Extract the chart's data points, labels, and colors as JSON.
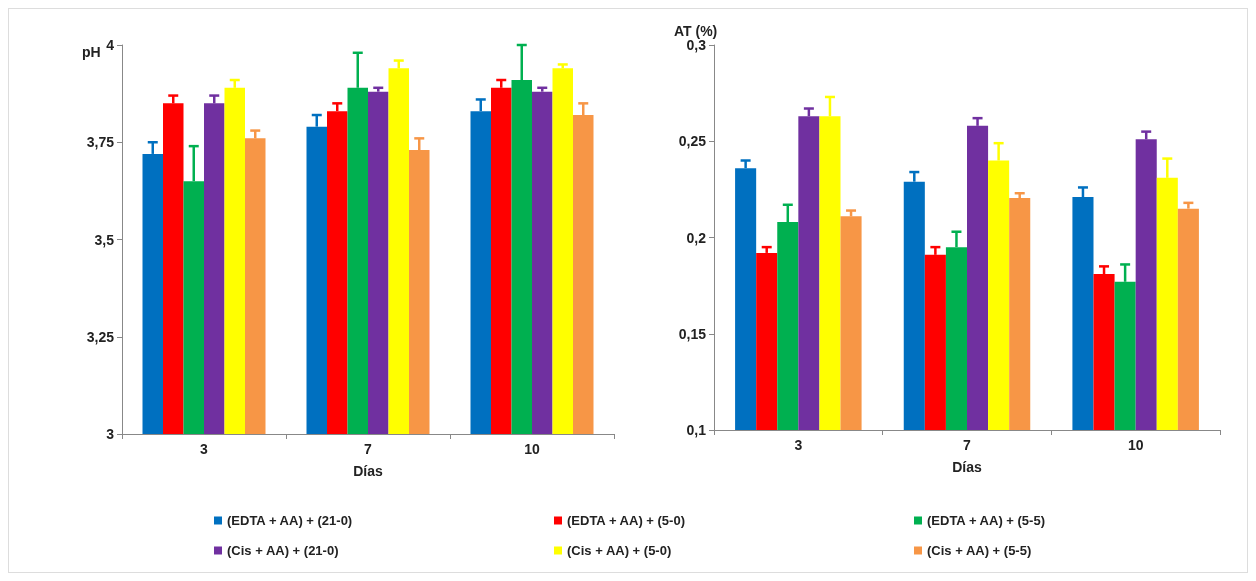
{
  "chart_data": [
    {
      "type": "bar",
      "xlabel": "Días",
      "ylabel": "pH",
      "categories": [
        "3",
        "7",
        "10"
      ],
      "ylim": [
        3,
        4
      ],
      "yticks": [
        3,
        {
          "value": 3.25,
          "label": "3,25"
        },
        {
          "value": 3.5,
          "label": "3,5"
        },
        {
          "value": 3.75,
          "label": "3,75"
        },
        4
      ],
      "grid": false,
      "legend": "bottom",
      "series": [
        {
          "name": "(EDTA + AA) + (21-0)",
          "color": "#0070c0",
          "values": [
            3.72,
            3.79,
            3.83
          ],
          "errors": [
            [
              3.72,
              3.75
            ],
            [
              3.79,
              3.82
            ],
            [
              3.83,
              3.86
            ]
          ]
        },
        {
          "name": "(EDTA + AA) + (5-0)",
          "color": "#ff0000",
          "values": [
            3.85,
            3.83,
            3.89
          ],
          "errors": [
            [
              3.85,
              3.87
            ],
            [
              3.83,
              3.85
            ],
            [
              3.89,
              3.91
            ]
          ]
        },
        {
          "name": "(EDTA + AA) + (5-5)",
          "color": "#00b050",
          "values": [
            3.65,
            3.89,
            3.91
          ],
          "errors": [
            [
              3.65,
              3.74
            ],
            [
              3.89,
              3.98
            ],
            [
              3.91,
              4.0
            ]
          ]
        },
        {
          "name": "(Cis + AA) + (21-0)",
          "color": "#7030a0",
          "values": [
            3.85,
            3.88,
            3.88
          ],
          "errors": [
            [
              3.85,
              3.87
            ],
            [
              3.88,
              3.89
            ],
            [
              3.88,
              3.89
            ]
          ]
        },
        {
          "name": "(Cis + AA) + (5-0)",
          "color": "#ffff00",
          "values": [
            3.89,
            3.94,
            3.94
          ],
          "errors": [
            [
              3.89,
              3.91
            ],
            [
              3.94,
              3.96
            ],
            [
              3.94,
              3.95
            ]
          ]
        },
        {
          "name": "(Cis + AA) + (5-5)",
          "color": "#f79646",
          "values": [
            3.76,
            3.73,
            3.82
          ],
          "errors": [
            [
              3.76,
              3.78
            ],
            [
              3.73,
              3.76
            ],
            [
              3.82,
              3.85
            ]
          ]
        }
      ]
    },
    {
      "type": "bar",
      "xlabel": "Días",
      "ylabel": "AT (%)",
      "categories": [
        "3",
        "7",
        "10"
      ],
      "ylim": [
        0.1,
        0.3
      ],
      "yticks": [
        {
          "value": 0.1,
          "label": "0,1"
        },
        {
          "value": 0.15,
          "label": "0,15"
        },
        {
          "value": 0.2,
          "label": "0,2"
        },
        {
          "value": 0.25,
          "label": "0,25"
        },
        {
          "value": 0.3,
          "label": "0,3"
        }
      ],
      "grid": false,
      "legend": false,
      "series": [
        {
          "color": "#0070c0",
          "values": [
            0.236,
            0.229,
            0.221
          ],
          "errors": [
            [
              0.236,
              0.24
            ],
            [
              0.229,
              0.234
            ],
            [
              0.221,
              0.226
            ]
          ]
        },
        {
          "color": "#ff0000",
          "values": [
            0.192,
            0.191,
            0.181
          ],
          "errors": [
            [
              0.192,
              0.195
            ],
            [
              0.191,
              0.195
            ],
            [
              0.181,
              0.185
            ]
          ]
        },
        {
          "color": "#00b050",
          "values": [
            0.208,
            0.195,
            0.177
          ],
          "errors": [
            [
              0.208,
              0.217
            ],
            [
              0.195,
              0.203
            ],
            [
              0.177,
              0.186
            ]
          ]
        },
        {
          "color": "#7030a0",
          "values": [
            0.263,
            0.258,
            0.251
          ],
          "errors": [
            [
              0.263,
              0.267
            ],
            [
              0.258,
              0.262
            ],
            [
              0.251,
              0.255
            ]
          ]
        },
        {
          "color": "#ffff00",
          "values": [
            0.263,
            0.24,
            0.231
          ],
          "errors": [
            [
              0.263,
              0.273
            ],
            [
              0.24,
              0.249
            ],
            [
              0.231,
              0.241
            ]
          ]
        },
        {
          "color": "#f79646",
          "values": [
            0.211,
            0.2205,
            0.215
          ],
          "errors": [
            [
              0.211,
              0.214
            ],
            [
              0.2205,
              0.223
            ],
            [
              0.215,
              0.218
            ]
          ]
        }
      ]
    }
  ]
}
